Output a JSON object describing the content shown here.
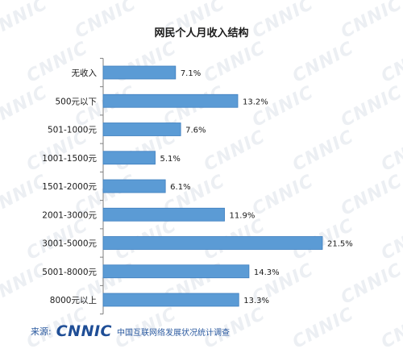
{
  "watermark": {
    "text": "CNNIC"
  },
  "chart_data": {
    "type": "bar",
    "orientation": "horizontal",
    "title": "网民个人月收入结构",
    "categories": [
      "无收入",
      "500元以下",
      "501-1000元",
      "1001-1500元",
      "1501-2000元",
      "2001-3000元",
      "3001-5000元",
      "5001-8000元",
      "8000元以上"
    ],
    "values": [
      7.1,
      13.2,
      7.6,
      5.1,
      6.1,
      11.9,
      21.5,
      14.3,
      13.3
    ],
    "value_labels": [
      "7.1%",
      "13.2%",
      "7.6%",
      "5.1%",
      "6.1%",
      "11.9%",
      "21.5%",
      "14.3%",
      "13.3%"
    ],
    "xlim": [
      0,
      21.5
    ],
    "unit": "%",
    "grid": false,
    "bar_color": "#5b9bd5",
    "bar_edge_color": "#3f7fbf"
  },
  "footer": {
    "source_label": "来源:",
    "logo_text": "CNNIC",
    "organization": "中国互联网络发展状况统计调查"
  }
}
